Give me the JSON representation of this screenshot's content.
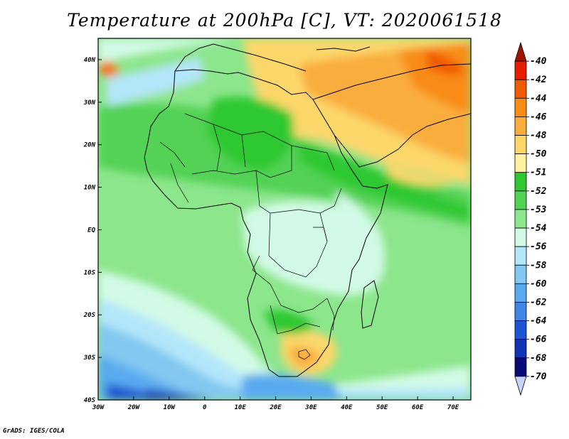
{
  "title": "Temperature at 200hPa [C], VT: 2020061518",
  "credit": "GrADS: IGES/COLA",
  "map": {
    "lon_range": [
      -30,
      75
    ],
    "lat_range": [
      -40,
      45
    ],
    "lat_labels": [
      "40N",
      "30N",
      "20N",
      "10N",
      "EQ",
      "10S",
      "20S",
      "30S",
      "40S"
    ],
    "lat_values": [
      40,
      30,
      20,
      10,
      0,
      -10,
      -20,
      -30,
      -40
    ],
    "lon_labels": [
      "30W",
      "20W",
      "10W",
      "0",
      "10E",
      "20E",
      "30E",
      "40E",
      "50E",
      "60E",
      "70E"
    ],
    "lon_values": [
      -30,
      -20,
      -10,
      0,
      10,
      20,
      30,
      40,
      50,
      60,
      70
    ]
  },
  "colorbar": {
    "levels": [
      "-40",
      "-42",
      "-44",
      "-46",
      "-48",
      "-50",
      "-51",
      "-52",
      "-53",
      "-54",
      "-56",
      "-58",
      "-60",
      "-62",
      "-64",
      "-66",
      "-68",
      "-70"
    ],
    "colors": [
      "#a01400",
      "#e61e00",
      "#f05a00",
      "#f88c14",
      "#f9ad3c",
      "#fbd76a",
      "#fff2a0",
      "#2ec832",
      "#52d255",
      "#8ce68c",
      "#d2fae6",
      "#b4e6fa",
      "#82c8f0",
      "#5aaaf0",
      "#4186e6",
      "#1e55d2",
      "#1432b4",
      "#0a0a78",
      "#c8d2ff"
    ]
  }
}
